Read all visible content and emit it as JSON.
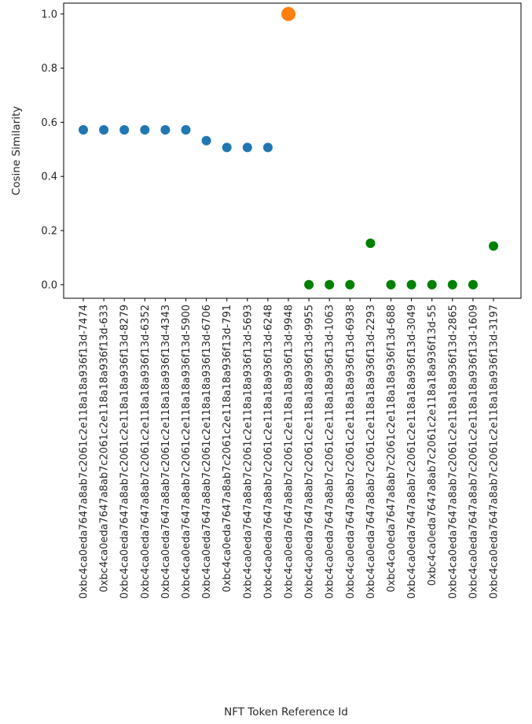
{
  "chart_data": {
    "type": "scatter",
    "xlabel": "NFT Token Reference Id",
    "ylabel": "Cosine Similarity",
    "ylim": [
      -0.05,
      1.04
    ],
    "yticks": [
      0.0,
      0.2,
      0.4,
      0.6,
      0.8,
      1.0
    ],
    "ytick_labels": [
      "0.0",
      "0.2",
      "0.4",
      "0.6",
      "0.8",
      "1.0"
    ],
    "grid": false,
    "categories": [
      "0xbc4ca0eda7647a8ab7c2061c2e118a18a936f13d-7474",
      "0xbc4ca0eda7647a8ab7c2061c2e118a18a936f13d-633",
      "0xbc4ca0eda7647a8ab7c2061c2e118a18a936f13d-8279",
      "0xbc4ca0eda7647a8ab7c2061c2e118a18a936f13d-6352",
      "0xbc4ca0eda7647a8ab7c2061c2e118a18a936f13d-4343",
      "0xbc4ca0eda7647a8ab7c2061c2e118a18a936f13d-5900",
      "0xbc4ca0eda7647a8ab7c2061c2e118a18a936f13d-6706",
      "0xbc4ca0eda7647a8ab7c2061c2e118a18a936f13d-791",
      "0xbc4ca0eda7647a8ab7c2061c2e118a18a936f13d-5693",
      "0xbc4ca0eda7647a8ab7c2061c2e118a18a936f13d-6248",
      "0xbc4ca0eda7647a8ab7c2061c2e118a18a936f13d-9948",
      "0xbc4ca0eda7647a8ab7c2061c2e118a18a936f13d-9955",
      "0xbc4ca0eda7647a8ab7c2061c2e118a18a936f13d-1063",
      "0xbc4ca0eda7647a8ab7c2061c2e118a18a936f13d-6938",
      "0xbc4ca0eda7647a8ab7c2061c2e118a18a936f13d-2293",
      "0xbc4ca0eda7647a8ab7c2061c2e118a18a936f13d-688",
      "0xbc4ca0eda7647a8ab7c2061c2e118a18a936f13d-3049",
      "0xbc4ca0eda7647a8ab7c2061c2e118a18a936f13d-55",
      "0xbc4ca0eda7647a8ab7c2061c2e118a18a936f13d-2865",
      "0xbc4ca0eda7647a8ab7c2061c2e118a18a936f13d-1609",
      "0xbc4ca0eda7647a8ab7c2061c2e118a18a936f13d-3197"
    ],
    "series": [
      {
        "color": "#1f77b4",
        "marker": "small-circle",
        "points": [
          {
            "x": "0xbc4ca0eda7647a8ab7c2061c2e118a18a936f13d-7474",
            "y": 0.572
          },
          {
            "x": "0xbc4ca0eda7647a8ab7c2061c2e118a18a936f13d-633",
            "y": 0.572
          },
          {
            "x": "0xbc4ca0eda7647a8ab7c2061c2e118a18a936f13d-8279",
            "y": 0.572
          },
          {
            "x": "0xbc4ca0eda7647a8ab7c2061c2e118a18a936f13d-6352",
            "y": 0.572
          },
          {
            "x": "0xbc4ca0eda7647a8ab7c2061c2e118a18a936f13d-4343",
            "y": 0.572
          },
          {
            "x": "0xbc4ca0eda7647a8ab7c2061c2e118a18a936f13d-5900",
            "y": 0.572
          },
          {
            "x": "0xbc4ca0eda7647a8ab7c2061c2e118a18a936f13d-6706",
            "y": 0.532
          },
          {
            "x": "0xbc4ca0eda7647a8ab7c2061c2e118a18a936f13d-791",
            "y": 0.507
          },
          {
            "x": "0xbc4ca0eda7647a8ab7c2061c2e118a18a936f13d-5693",
            "y": 0.507
          },
          {
            "x": "0xbc4ca0eda7647a8ab7c2061c2e118a18a936f13d-6248",
            "y": 0.507
          }
        ]
      },
      {
        "color": "#ff7f0e",
        "marker": "large-circle",
        "points": [
          {
            "x": "0xbc4ca0eda7647a8ab7c2061c2e118a18a936f13d-9948",
            "y": 1.0
          }
        ]
      },
      {
        "color": "#008000",
        "marker": "small-circle",
        "points": [
          {
            "x": "0xbc4ca0eda7647a8ab7c2061c2e118a18a936f13d-9955",
            "y": 0.0
          },
          {
            "x": "0xbc4ca0eda7647a8ab7c2061c2e118a18a936f13d-1063",
            "y": 0.0
          },
          {
            "x": "0xbc4ca0eda7647a8ab7c2061c2e118a18a936f13d-6938",
            "y": 0.0
          },
          {
            "x": "0xbc4ca0eda7647a8ab7c2061c2e118a18a936f13d-2293",
            "y": 0.153
          },
          {
            "x": "0xbc4ca0eda7647a8ab7c2061c2e118a18a936f13d-688",
            "y": 0.0
          },
          {
            "x": "0xbc4ca0eda7647a8ab7c2061c2e118a18a936f13d-3049",
            "y": 0.0
          },
          {
            "x": "0xbc4ca0eda7647a8ab7c2061c2e118a18a936f13d-55",
            "y": 0.0
          },
          {
            "x": "0xbc4ca0eda7647a8ab7c2061c2e118a18a936f13d-2865",
            "y": 0.0
          },
          {
            "x": "0xbc4ca0eda7647a8ab7c2061c2e118a18a936f13d-1609",
            "y": 0.0
          },
          {
            "x": "0xbc4ca0eda7647a8ab7c2061c2e118a18a936f13d-3197",
            "y": 0.143
          }
        ]
      }
    ]
  }
}
